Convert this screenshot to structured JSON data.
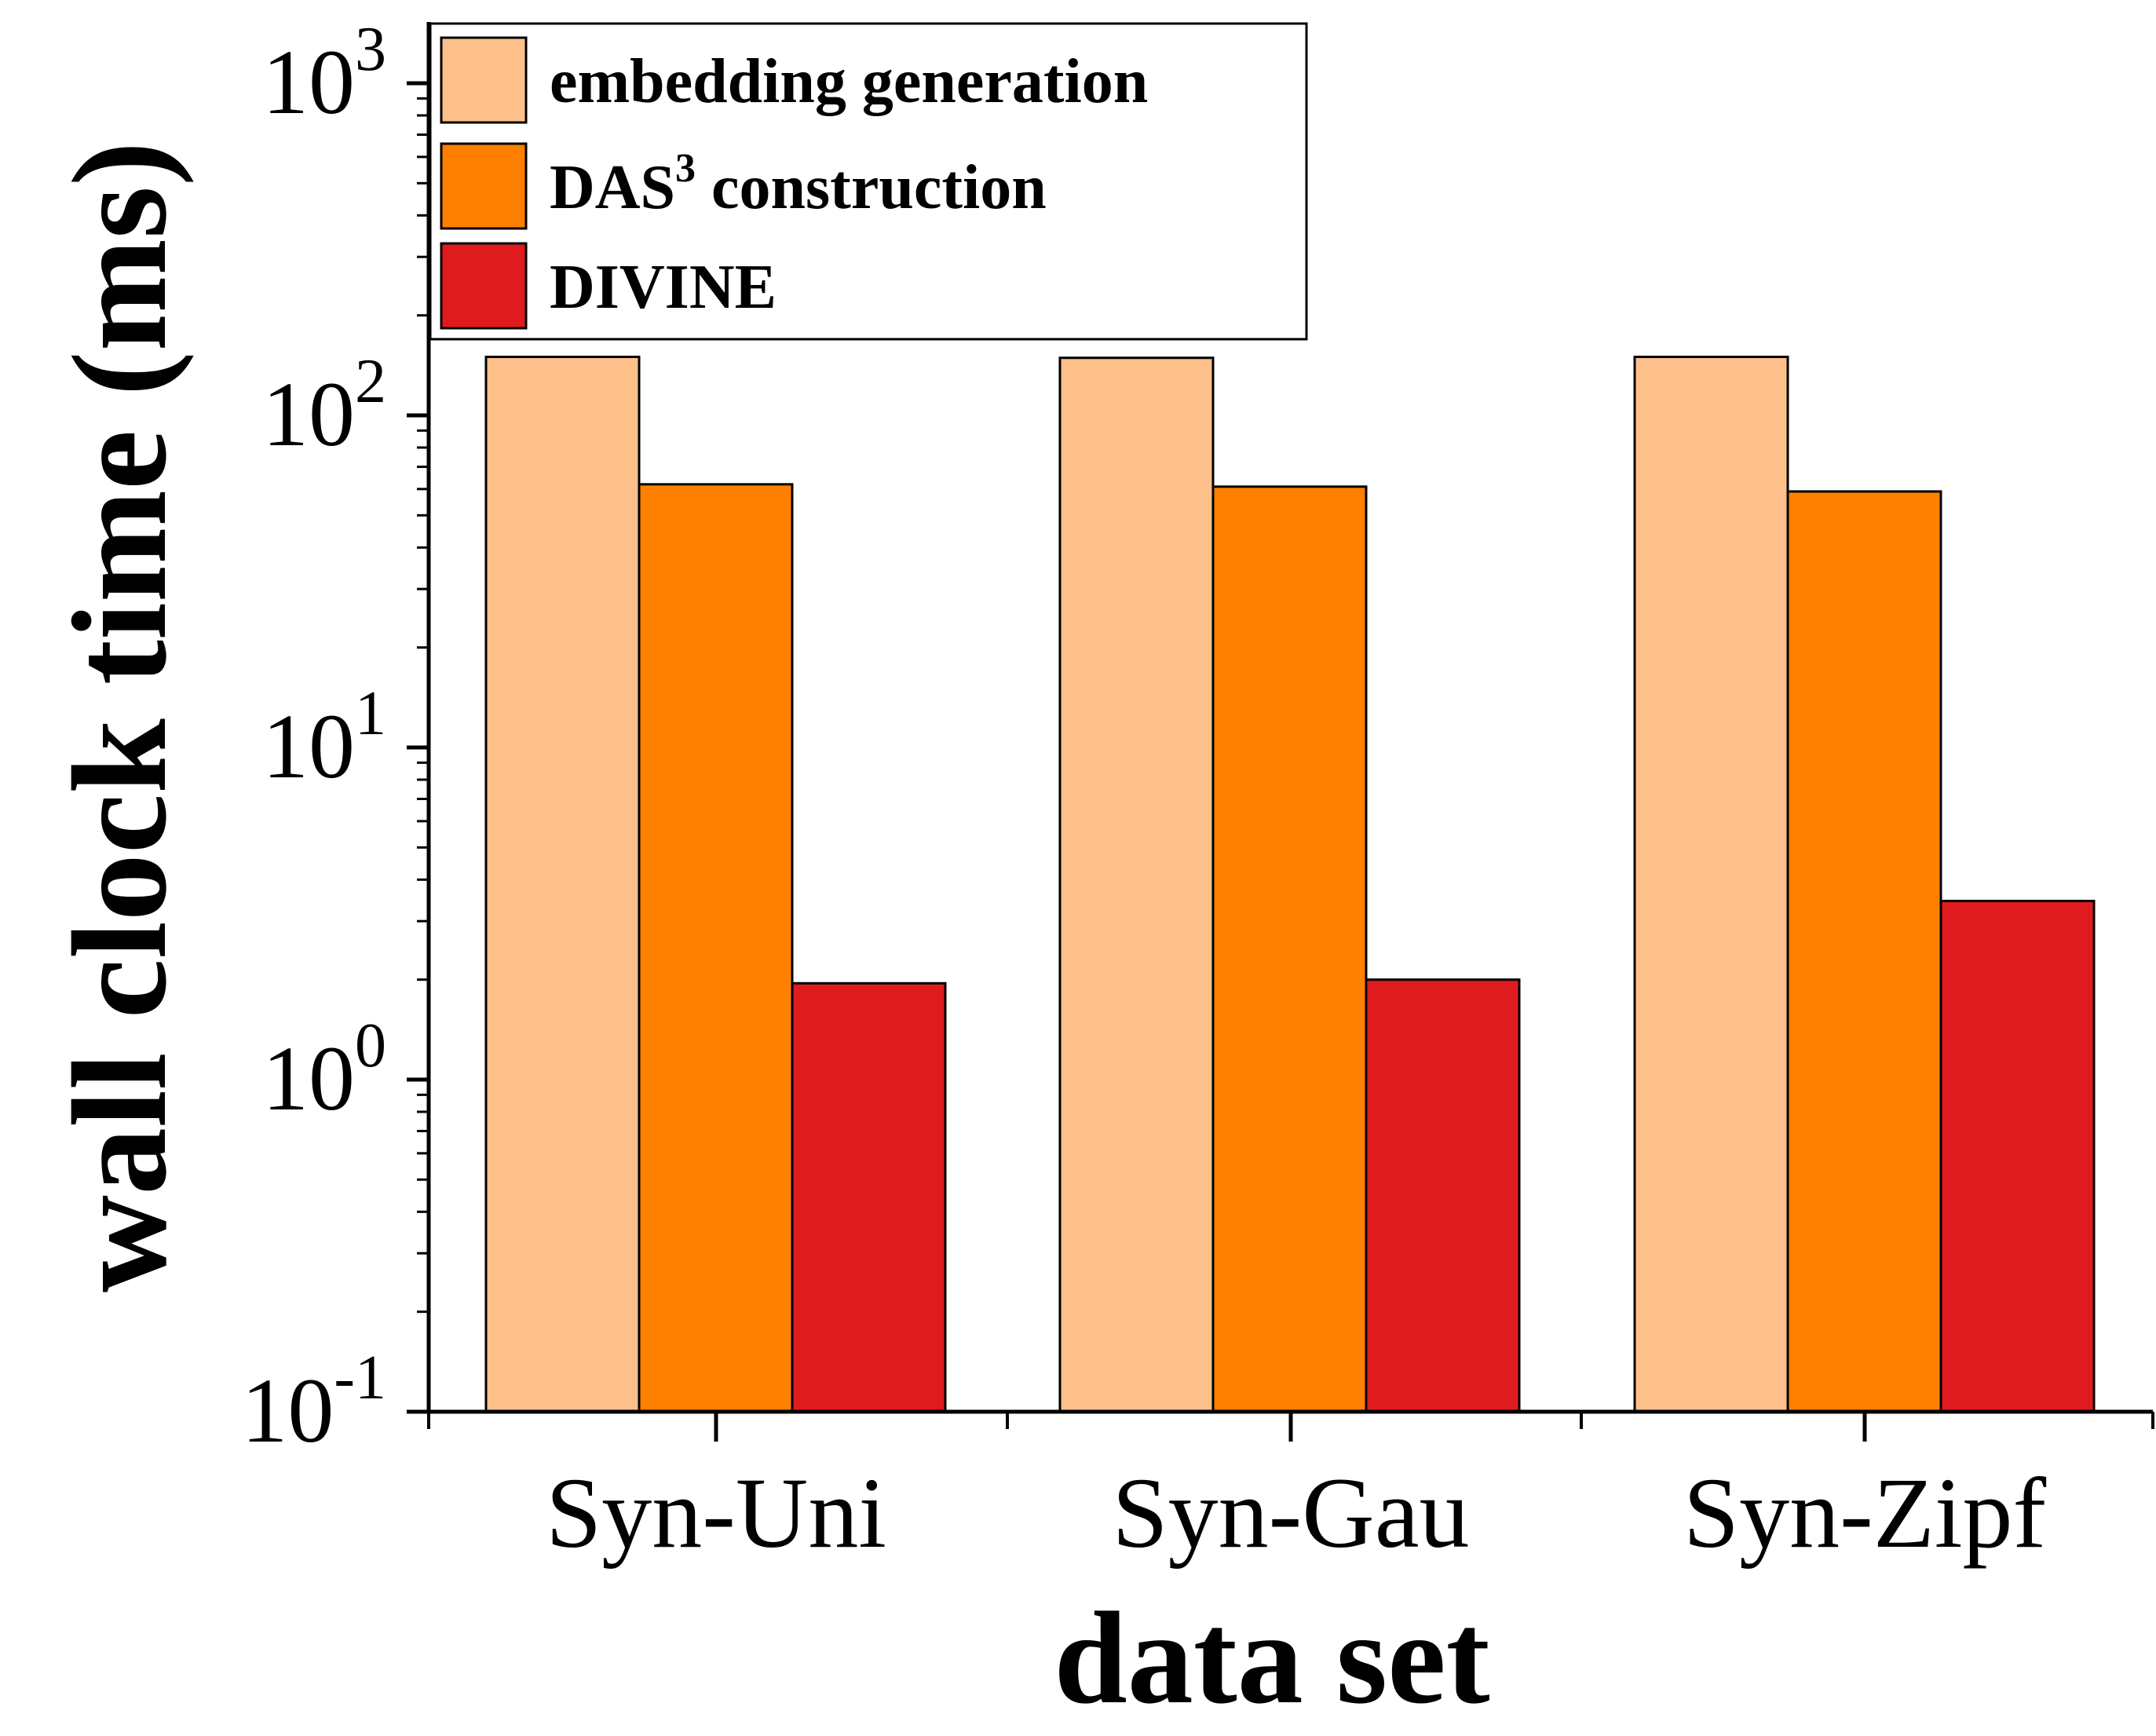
{
  "chart_data": {
    "type": "bar",
    "categories": [
      "Syn-Uni",
      "Syn-Gau",
      "Syn-Zipf"
    ],
    "series": [
      {
        "name": "embedding generation",
        "color": "#FDC08A",
        "values": [
          150,
          149,
          150
        ]
      },
      {
        "name": "DAS3 construction",
        "color": "#FF8000",
        "values": [
          62,
          61,
          59
        ]
      },
      {
        "name": "DIVINE",
        "color": "#E01B1E",
        "values": [
          1.95,
          2.0,
          3.45
        ]
      }
    ],
    "legend_labels": [
      {
        "text": "embedding generation",
        "sup": ""
      },
      {
        "text": "DAS",
        "sup": "3",
        "rest": " construction"
      },
      {
        "text": "DIVINE",
        "sup": ""
      }
    ],
    "xlabel": "data set",
    "ylabel": "wall clock time (ms)",
    "yscale": "log",
    "ylim": [
      0.1,
      1600
    ],
    "yticks": [
      {
        "value": 0.1,
        "base": "10",
        "exp": "-1"
      },
      {
        "value": 1,
        "base": "10",
        "exp": "0"
      },
      {
        "value": 10,
        "base": "10",
        "exp": "1"
      },
      {
        "value": 100,
        "base": "10",
        "exp": "2"
      },
      {
        "value": 1000,
        "base": "10",
        "exp": "3"
      }
    ],
    "grid": false,
    "legend_position": "top-left"
  }
}
